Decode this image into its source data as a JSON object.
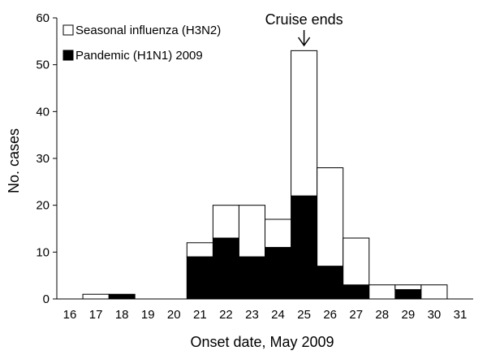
{
  "chart_data": {
    "type": "bar",
    "stacked": true,
    "xlabel": "Onset date, May 2009",
    "ylabel": "No. cases",
    "ylim": [
      0,
      60
    ],
    "yticks": [
      0,
      10,
      20,
      30,
      40,
      50,
      60
    ],
    "categories": [
      "16",
      "17",
      "18",
      "19",
      "20",
      "21",
      "22",
      "23",
      "24",
      "25",
      "26",
      "27",
      "28",
      "29",
      "30",
      "31"
    ],
    "series": [
      {
        "name": "Pandemic (H1N1) 2009",
        "color": "#000000",
        "values": [
          0,
          0,
          1,
          0,
          0,
          9,
          13,
          9,
          11,
          22,
          7,
          3,
          0,
          2,
          0,
          0
        ]
      },
      {
        "name": "Seasonal influenza (H3N2)",
        "color": "#ffffff",
        "values": [
          0,
          1,
          0,
          0,
          0,
          3,
          7,
          11,
          6,
          31,
          21,
          10,
          3,
          1,
          3,
          0
        ]
      }
    ],
    "legend": {
      "position": "top-left",
      "items": [
        {
          "label": "Seasonal influenza (H3N2)",
          "fill": "#ffffff"
        },
        {
          "label": "Pandemic (H1N1) 2009",
          "fill": "#000000"
        }
      ]
    },
    "annotation": {
      "text": "Cruise ends",
      "category": "25",
      "arrow": "down"
    },
    "grid": false
  }
}
